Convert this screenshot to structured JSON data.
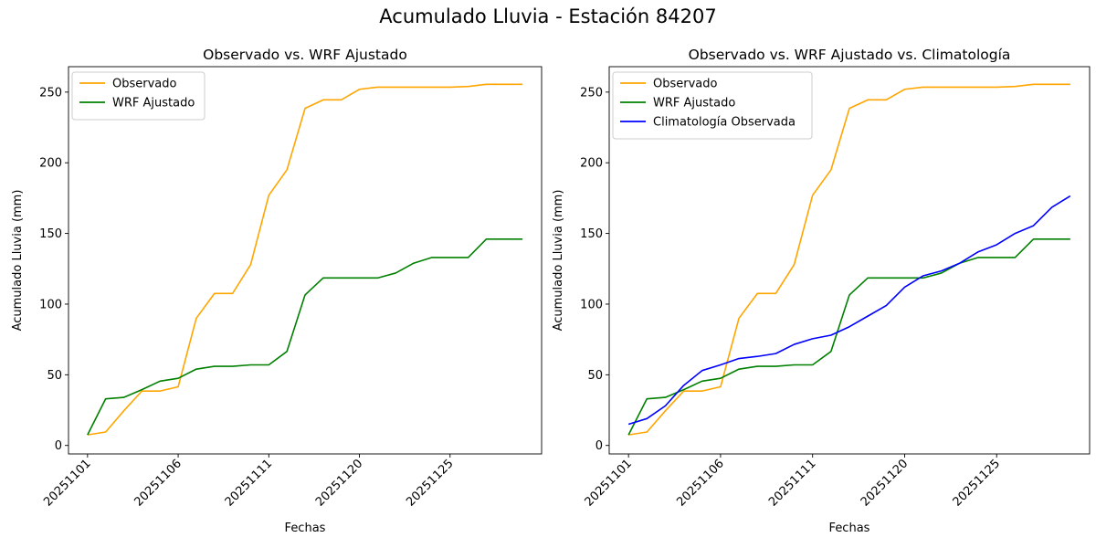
{
  "figure_title": "Acumulado Lluvia - Estación 84207",
  "colors": {
    "observed": "#ffa500",
    "wrf": "#008000",
    "climatology": "#0000ff"
  },
  "chart_data": [
    {
      "type": "line",
      "title": "Observado vs. WRF Ajustado",
      "xlabel": "Fechas",
      "ylabel": "Acumulado Lluvia (mm)",
      "ylim": [
        -6,
        268
      ],
      "yticks": [
        0,
        50,
        100,
        150,
        200,
        250
      ],
      "x_tick_labels": [
        "20251101",
        "20251106",
        "20251111",
        "20251120",
        "20251125"
      ],
      "x_tick_positions": [
        0,
        5,
        10,
        15,
        20
      ],
      "legend": "top-left",
      "grid": false,
      "series": [
        {
          "name": "Observado",
          "color": "#ffa500",
          "values": [
            7.5,
            9.5,
            24.5,
            38.5,
            38.5,
            41.5,
            90,
            107.5,
            107.5,
            128,
            177,
            195,
            238.5,
            244.5,
            244.5,
            252,
            253.5,
            253.5,
            253.5,
            253.5,
            253.5,
            254,
            255.5,
            255.5,
            255.5
          ]
        },
        {
          "name": "WRF Ajustado",
          "color": "#008000",
          "values": [
            7.5,
            33,
            34,
            39.5,
            45.5,
            47.5,
            54,
            56,
            56,
            57,
            57,
            66.5,
            106.5,
            118.5,
            118.5,
            118.5,
            118.5,
            122,
            129,
            133,
            133,
            133,
            146,
            146,
            146
          ]
        }
      ]
    },
    {
      "type": "line",
      "title": "Observado vs. WRF Ajustado vs. Climatología",
      "xlabel": "Fechas",
      "ylabel": "Acumulado Lluvia (mm)",
      "ylim": [
        -6,
        268
      ],
      "yticks": [
        0,
        50,
        100,
        150,
        200,
        250
      ],
      "x_tick_labels": [
        "20251101",
        "20251106",
        "20251111",
        "20251120",
        "20251125"
      ],
      "x_tick_positions": [
        0,
        5,
        10,
        15,
        20
      ],
      "legend": "top-left",
      "grid": false,
      "series": [
        {
          "name": "Observado",
          "color": "#ffa500",
          "values": [
            7.5,
            9.5,
            24.5,
            38.5,
            38.5,
            41.5,
            90,
            107.5,
            107.5,
            128,
            177,
            195,
            238.5,
            244.5,
            244.5,
            252,
            253.5,
            253.5,
            253.5,
            253.5,
            253.5,
            254,
            255.5,
            255.5,
            255.5
          ]
        },
        {
          "name": "WRF Ajustado",
          "color": "#008000",
          "values": [
            7.5,
            33,
            34,
            39.5,
            45.5,
            47.5,
            54,
            56,
            56,
            57,
            57,
            66.5,
            106.5,
            118.5,
            118.5,
            118.5,
            118.5,
            122,
            129,
            133,
            133,
            133,
            146,
            146,
            146
          ]
        },
        {
          "name": "Climatología Observada",
          "color": "#0000ff",
          "values": [
            15,
            19,
            28,
            42.5,
            53,
            57,
            61.5,
            63,
            65,
            71.5,
            75.5,
            78,
            84,
            91.5,
            99,
            112,
            120,
            123.5,
            129,
            137,
            142,
            150,
            155.5,
            168.5,
            176.5
          ]
        }
      ]
    }
  ]
}
